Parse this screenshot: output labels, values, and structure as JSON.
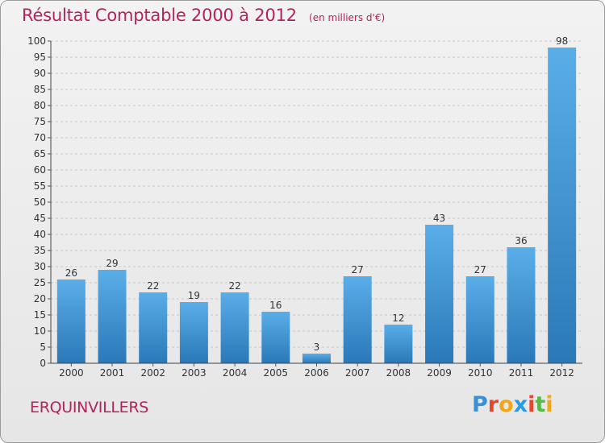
{
  "chart_data": {
    "type": "bar",
    "title": "Résultat Comptable 2000 à 2012",
    "unit_note": "(en milliers d'€)",
    "categories": [
      "2000",
      "2001",
      "2002",
      "2003",
      "2004",
      "2005",
      "2006",
      "2007",
      "2008",
      "2009",
      "2010",
      "2011",
      "2012"
    ],
    "values": [
      26,
      29,
      22,
      19,
      22,
      16,
      3,
      27,
      12,
      43,
      27,
      36,
      98
    ],
    "ylim": [
      0,
      100
    ],
    "yticks": [
      0,
      5,
      10,
      15,
      20,
      25,
      30,
      35,
      40,
      45,
      50,
      55,
      60,
      65,
      70,
      75,
      80,
      85,
      90,
      95,
      100
    ],
    "grid": true,
    "xlabel": "",
    "ylabel": ""
  },
  "commune": "ERQUINVILLERS",
  "logo": {
    "text": "Proxiti",
    "letters": [
      {
        "ch": "P",
        "color": "#3a8fd8"
      },
      {
        "ch": "r",
        "color": "#e8452c"
      },
      {
        "ch": "o",
        "color": "#f2a71b"
      },
      {
        "ch": "x",
        "color": "#2b9be0"
      },
      {
        "ch": "i",
        "color": "#e8452c"
      },
      {
        "ch": "t",
        "color": "#58b947"
      },
      {
        "ch": "i",
        "color": "#f2a71b"
      }
    ]
  },
  "colors": {
    "bar_top": "#5aaee8",
    "bar_bottom": "#2a78b8",
    "grid": "#c8c8c8",
    "accent": "#b2245e"
  }
}
